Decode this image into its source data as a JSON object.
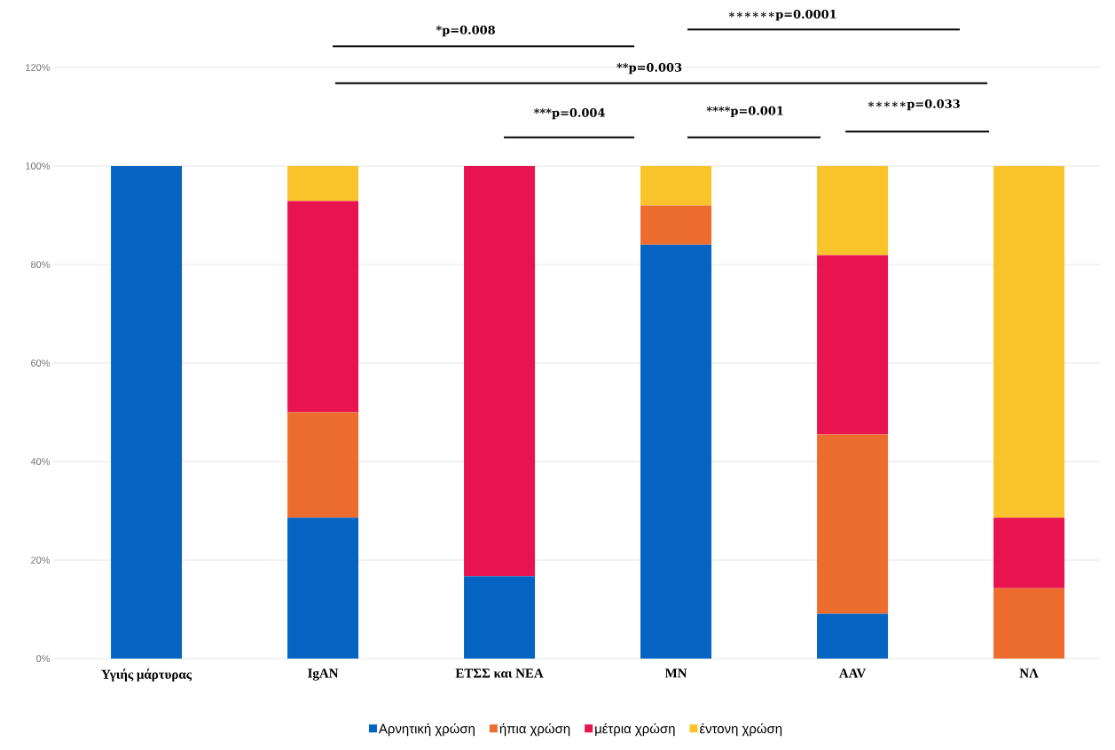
{
  "chart_data": {
    "type": "bar",
    "stacked": true,
    "categories": [
      "Υγιής μάρτυρας",
      "IgAN",
      "ΕΤΣΣ και ΝΕΑ",
      "MN",
      "AAV",
      "ΝΛ"
    ],
    "series": [
      {
        "name": "Αρνητική χρώση",
        "color": "#0563c1",
        "values": [
          100,
          28.6,
          16.7,
          84,
          9.1,
          0
        ]
      },
      {
        "name": "ήπια χρώση",
        "color": "#ed6d2f",
        "values": [
          0,
          21.4,
          0,
          8,
          36.4,
          14.3
        ]
      },
      {
        "name": "μέτρια χρώση",
        "color": "#e8144f",
        "values": [
          0,
          42.9,
          83.3,
          0,
          36.4,
          14.3
        ]
      },
      {
        "name": "έντονη χρώση",
        "color": "#f9c32b",
        "values": [
          0,
          7.1,
          0,
          8,
          18.1,
          71.4
        ]
      }
    ],
    "ylim": [
      0,
      120
    ],
    "yticks": [
      {
        "value": 0,
        "label": "0%"
      },
      {
        "value": 20,
        "label": "20%"
      },
      {
        "value": 40,
        "label": "40%"
      },
      {
        "value": 60,
        "label": "60%"
      },
      {
        "value": 80,
        "label": "80%"
      },
      {
        "value": 100,
        "label": "100%"
      },
      {
        "value": 120,
        "label": "120%"
      }
    ],
    "grid": "y",
    "legend": "bottom",
    "annotations": [
      "*p=0.008",
      "∗∗∗∗∗∗p=0.0001",
      "**p=0.003",
      "***p=0.004",
      "****p=0.001",
      "∗∗∗∗∗p=0.033"
    ]
  }
}
